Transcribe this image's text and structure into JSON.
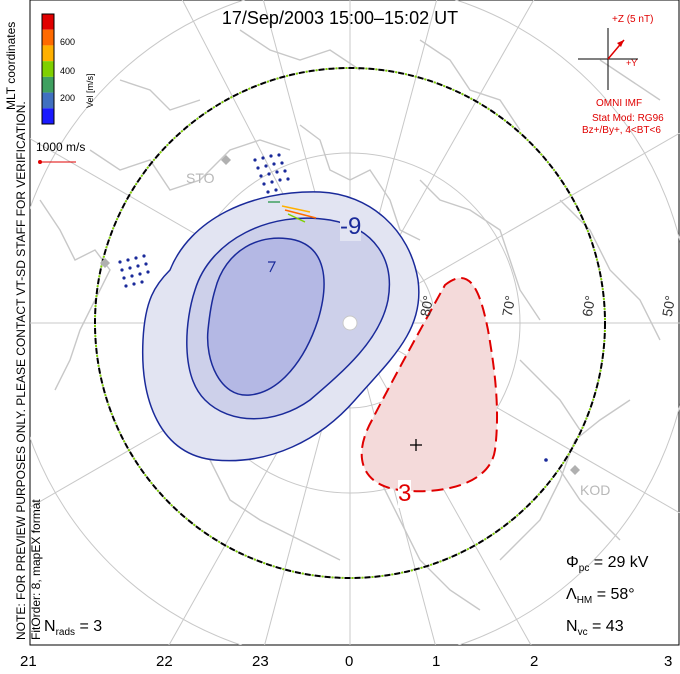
{
  "title": "17/Sep/2003 15:00–15:02 UT",
  "note": "NOTE: FOR PREVIEW PURPOSES ONLY. PLEASE CONTACT VT-SD STAFF FOR VERIFICATION.",
  "coordinates_label": "MLT coordinates",
  "fit_order": "FitOrder: 8, mapEX format",
  "colorbar": {
    "label": "Vel [m/s]",
    "ticks": [
      "600",
      "400",
      "200"
    ],
    "colors": [
      "#e00000",
      "#ff6a00",
      "#ffb000",
      "#7fd000",
      "#3fa060",
      "#4070c0",
      "#1a1aff"
    ]
  },
  "velocity_scale": "1000 m/s",
  "imf": {
    "clock_label": "+Z (5 nT)",
    "y_label": "+Y",
    "source": "OMNI IMF",
    "stat_mod": "Stat Mod: RG96",
    "bin": "Bz+/By+, 4<BT<6"
  },
  "latitude_labels": [
    "80°",
    "70°",
    "60°",
    "50°"
  ],
  "stations": [
    "STO",
    "KOD"
  ],
  "contour_labels": {
    "negative": "-9",
    "positive": "3"
  },
  "stats": {
    "phi_pc_symbol": "Φ",
    "phi_pc_sub": "pc",
    "phi_pc_value": " = 29 kV",
    "lambda_hm_symbol": "Λ",
    "lambda_hm_sub": "HM",
    "lambda_hm_value": " = 58°",
    "n_vc_symbol": "N",
    "n_vc_sub": "vc",
    "n_vc_value": " = 43",
    "n_rads_symbol": "N",
    "n_rads_sub": "rads",
    "n_rads_value": " = 3"
  },
  "mlt_axis": [
    "21",
    "22",
    "23",
    "0",
    "1",
    "2",
    "3"
  ]
}
